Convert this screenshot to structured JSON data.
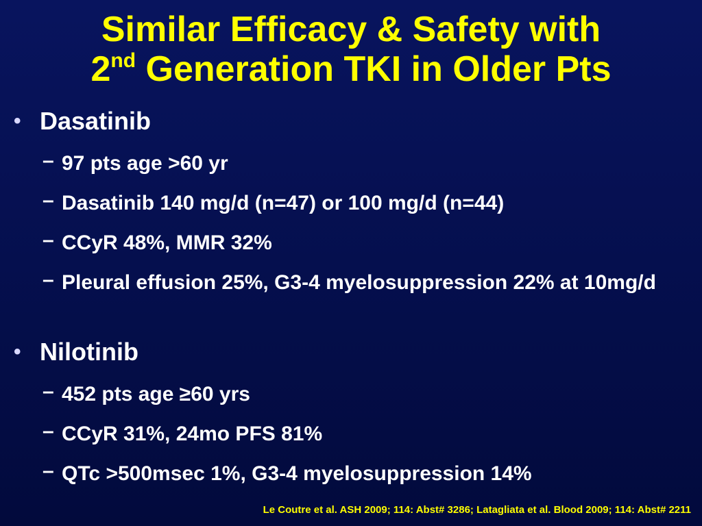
{
  "title": {
    "line1": "Similar Efficacy & Safety with",
    "line2_pre": "2",
    "line2_sup": "nd",
    "line2_post": " Generation TKI in Older Pts"
  },
  "bullet_char": "•",
  "dash_char": "–",
  "sections": [
    {
      "heading": "Dasatinib",
      "items": [
        "97 pts age >60 yr",
        "Dasatinib 140 mg/d (n=47) or 100 mg/d (n=44)",
        "CCyR 48%, MMR 32%",
        "Pleural effusion 25%, G3-4 myelosuppression 22% at 10mg/d"
      ]
    },
    {
      "heading": "Nilotinib",
      "items": [
        "452 pts age ≥60 yrs",
        "CCyR 31%, 24mo PFS 81%",
        "QTc >500msec 1%, G3-4 myelosuppression 14%"
      ]
    }
  ],
  "reference": "Le Coutre et al. ASH 2009; 114: Abst# 3286; Latagliata et al. Blood 2009; 114: Abst# 2211",
  "colors": {
    "background": "#050f4e",
    "title": "#ffff00",
    "body_text": "#ffffff",
    "reference": "#ffff00"
  }
}
